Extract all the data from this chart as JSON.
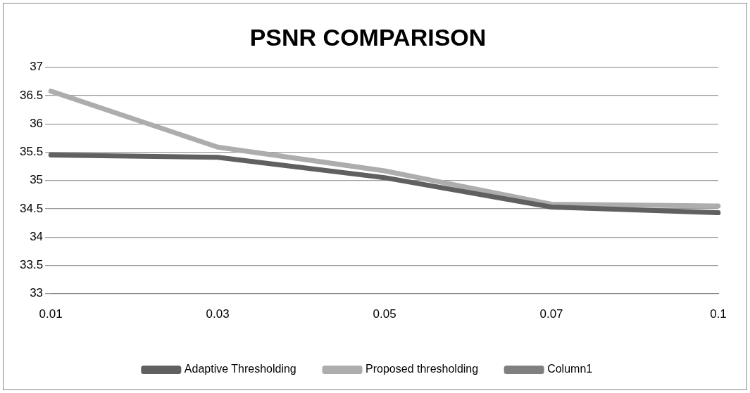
{
  "chart_data": {
    "type": "line",
    "title": "PSNR COMPARISON",
    "categories": [
      "0.01",
      "0.03",
      "0.05",
      "0.07",
      "0.1"
    ],
    "series": [
      {
        "name": "Adaptive Thresholding",
        "color": "#606060",
        "values": [
          35.45,
          35.41,
          35.05,
          34.53,
          34.43
        ]
      },
      {
        "name": "Proposed thresholding",
        "color": "#adadad",
        "values": [
          36.58,
          35.59,
          35.17,
          34.58,
          34.55
        ]
      },
      {
        "name": "Column1",
        "color": "#808080",
        "values": [
          null,
          null,
          null,
          null,
          null
        ]
      }
    ],
    "ylim": [
      33,
      37
    ],
    "yticks": [
      33,
      33.5,
      34,
      34.5,
      35,
      35.5,
      36,
      36.5,
      37
    ],
    "grid": "y",
    "legend": "bottom",
    "marker": "none",
    "line_style": "solid"
  }
}
